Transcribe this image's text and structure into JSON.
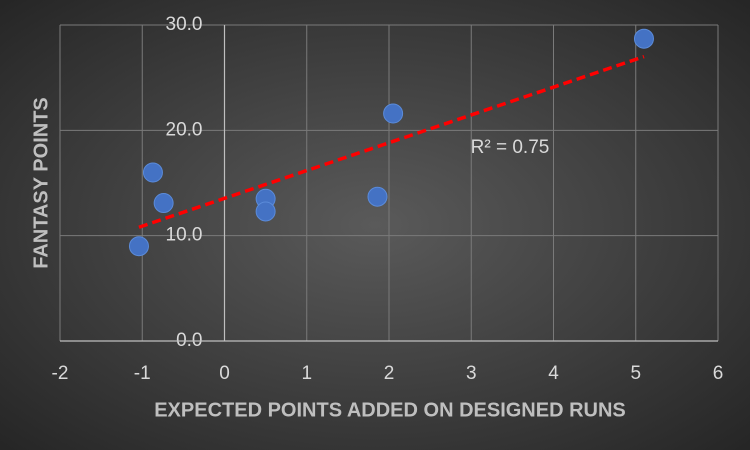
{
  "chart_data": {
    "type": "scatter",
    "x_label": "EXPECTED POINTS ADDED ON DESIGNED RUNS",
    "y_label": "FANTASY POINTS",
    "annotation": "R² = 0.75",
    "x": [
      -1.04,
      -0.87,
      -0.74,
      0.5,
      0.5,
      1.86,
      2.05,
      5.1
    ],
    "series": [
      {
        "color": "#4472c4",
        "values": [
          9.0,
          16.0,
          13.1,
          13.5,
          12.3,
          13.7,
          21.6,
          28.7
        ]
      }
    ],
    "trendline": {
      "color": "#ff0000",
      "x": [
        -1.04,
        5.1
      ],
      "values": [
        10.8,
        27.0
      ]
    },
    "xlim": [
      -2,
      6
    ],
    "xticks": [
      -2,
      -1,
      0,
      1,
      2,
      3,
      4,
      5,
      6
    ],
    "ylim": [
      0,
      30
    ],
    "yticks": [
      {
        "value": 0,
        "label": "0.0"
      },
      {
        "value": 10,
        "label": "10.0"
      },
      {
        "value": 20,
        "label": "20.0"
      },
      {
        "value": 30,
        "label": "30.0"
      }
    ],
    "grid": true
  }
}
